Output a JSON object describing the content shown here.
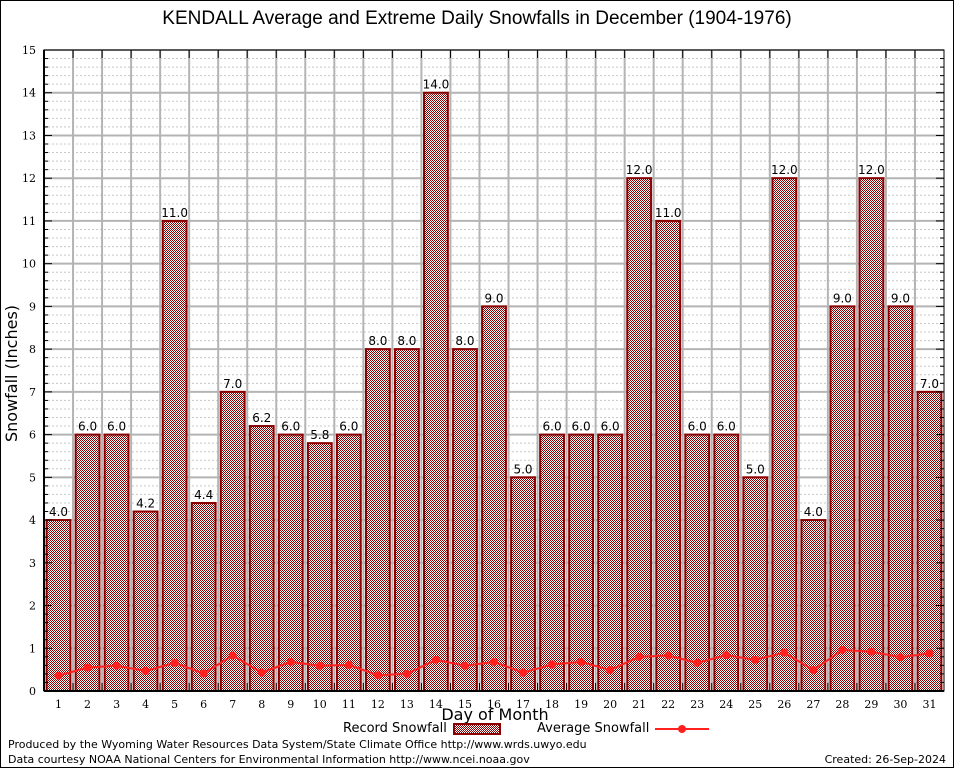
{
  "chart_data": {
    "type": "bar",
    "title": "KENDALL Average and Extreme Daily Snowfalls in December (1904-1976)",
    "xlabel": "Day of Month",
    "ylabel": "Snowfall (Inches)",
    "ylim": [
      0,
      15
    ],
    "yticks": [
      "0",
      "1",
      "2",
      "3",
      "4",
      "5",
      "6",
      "7",
      "8",
      "9",
      "10",
      "11",
      "12",
      "13",
      "14",
      "15"
    ],
    "grid": true,
    "legend_position": "bottom-center",
    "categories": [
      "1",
      "2",
      "3",
      "4",
      "5",
      "6",
      "7",
      "8",
      "9",
      "10",
      "11",
      "12",
      "13",
      "14",
      "15",
      "16",
      "17",
      "18",
      "19",
      "20",
      "21",
      "22",
      "23",
      "24",
      "25",
      "26",
      "27",
      "28",
      "29",
      "30",
      "31"
    ],
    "series": [
      {
        "name": "Record Snowfall",
        "type": "bar",
        "color": "#8b0000",
        "values": [
          4.0,
          6.0,
          6.0,
          4.2,
          11.0,
          4.4,
          7.0,
          6.2,
          6.0,
          5.8,
          6.0,
          8.0,
          8.0,
          14.0,
          8.0,
          9.0,
          5.0,
          6.0,
          6.0,
          6.0,
          12.0,
          11.0,
          6.0,
          6.0,
          5.0,
          12.0,
          4.0,
          9.0,
          12.0,
          9.0,
          7.0
        ],
        "labels": [
          "4.0",
          "6.0",
          "6.0",
          "4.2",
          "11.0",
          "4.4",
          "7.0",
          "6.2",
          "6.0",
          "5.8",
          "6.0",
          "8.0",
          "8.0",
          "14.0",
          "8.0",
          "9.0",
          "5.0",
          "6.0",
          "6.0",
          "6.0",
          "12.0",
          "11.0",
          "6.0",
          "6.0",
          "5.0",
          "12.0",
          "4.0",
          "9.0",
          "12.0",
          "9.0",
          "7.0"
        ]
      },
      {
        "name": "Average Snowfall",
        "type": "line",
        "color": "#ff2020",
        "values": [
          0.36,
          0.55,
          0.59,
          0.47,
          0.66,
          0.41,
          0.83,
          0.43,
          0.68,
          0.59,
          0.61,
          0.37,
          0.4,
          0.73,
          0.59,
          0.68,
          0.43,
          0.62,
          0.68,
          0.49,
          0.8,
          0.83,
          0.66,
          0.84,
          0.73,
          0.9,
          0.49,
          0.96,
          0.92,
          0.79,
          0.88
        ]
      }
    ]
  },
  "legend": {
    "record_label": "Record Snowfall",
    "average_label": "Average Snowfall"
  },
  "footer": {
    "produced_by": "Produced by the Wyoming Water Resources Data System/State Climate Office http://www.wrds.uwyo.edu",
    "data_courtesy": "Data courtesy NOAA National Centers for Environmental Information http://www.ncei.noaa.gov",
    "created": "Created: 26-Sep-2024"
  }
}
